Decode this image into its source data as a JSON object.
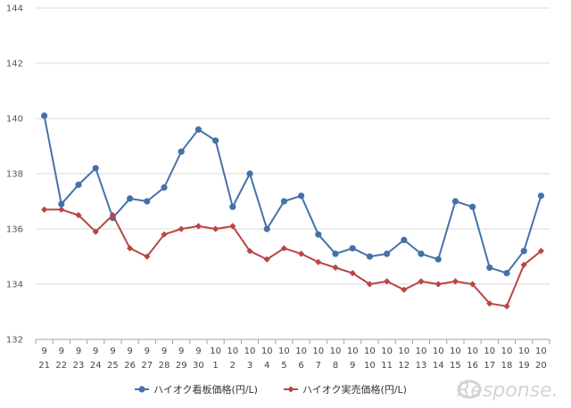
{
  "chart_data": {
    "type": "line",
    "categories": [
      [
        "9",
        "21"
      ],
      [
        "9",
        "22"
      ],
      [
        "9",
        "23"
      ],
      [
        "9",
        "24"
      ],
      [
        "9",
        "25"
      ],
      [
        "9",
        "26"
      ],
      [
        "9",
        "27"
      ],
      [
        "9",
        "28"
      ],
      [
        "9",
        "29"
      ],
      [
        "9",
        "30"
      ],
      [
        "10",
        "1"
      ],
      [
        "10",
        "2"
      ],
      [
        "10",
        "3"
      ],
      [
        "10",
        "4"
      ],
      [
        "10",
        "5"
      ],
      [
        "10",
        "6"
      ],
      [
        "10",
        "7"
      ],
      [
        "10",
        "8"
      ],
      [
        "10",
        "9"
      ],
      [
        "10",
        "10"
      ],
      [
        "10",
        "11"
      ],
      [
        "10",
        "12"
      ],
      [
        "10",
        "13"
      ],
      [
        "10",
        "14"
      ],
      [
        "10",
        "15"
      ],
      [
        "10",
        "16"
      ],
      [
        "10",
        "17"
      ],
      [
        "10",
        "18"
      ],
      [
        "10",
        "19"
      ],
      [
        "10",
        "20"
      ]
    ],
    "series": [
      {
        "name": "ハイオク看板価格(円/L)",
        "color": "#4472a8",
        "marker": "circle",
        "values": [
          140.1,
          136.9,
          137.6,
          138.2,
          136.4,
          137.1,
          137.0,
          137.5,
          138.8,
          139.6,
          139.2,
          136.8,
          138.0,
          136.0,
          137.0,
          137.2,
          135.8,
          135.1,
          135.3,
          135.0,
          135.1,
          135.6,
          135.1,
          134.9,
          137.0,
          136.8,
          134.6,
          134.4,
          135.2,
          137.2
        ]
      },
      {
        "name": "ハイオク実売価格(円/L)",
        "color": "#b94643",
        "marker": "diamond",
        "values": [
          136.7,
          136.7,
          136.5,
          135.9,
          136.5,
          135.3,
          135.0,
          135.8,
          136.0,
          136.1,
          136.0,
          136.1,
          135.2,
          134.9,
          135.3,
          135.1,
          134.8,
          134.6,
          134.4,
          134.0,
          134.1,
          133.8,
          134.1,
          134.0,
          134.1,
          134.0,
          133.3,
          133.2,
          134.7,
          135.2
        ]
      }
    ],
    "y_ticks": [
      132,
      134,
      136,
      138,
      140,
      142,
      144
    ],
    "ylim": [
      132,
      144
    ],
    "title": "",
    "xlabel": "",
    "ylabel": "",
    "grid": "horizontal",
    "legend": "bottom"
  },
  "watermark": {
    "text": "Response."
  }
}
